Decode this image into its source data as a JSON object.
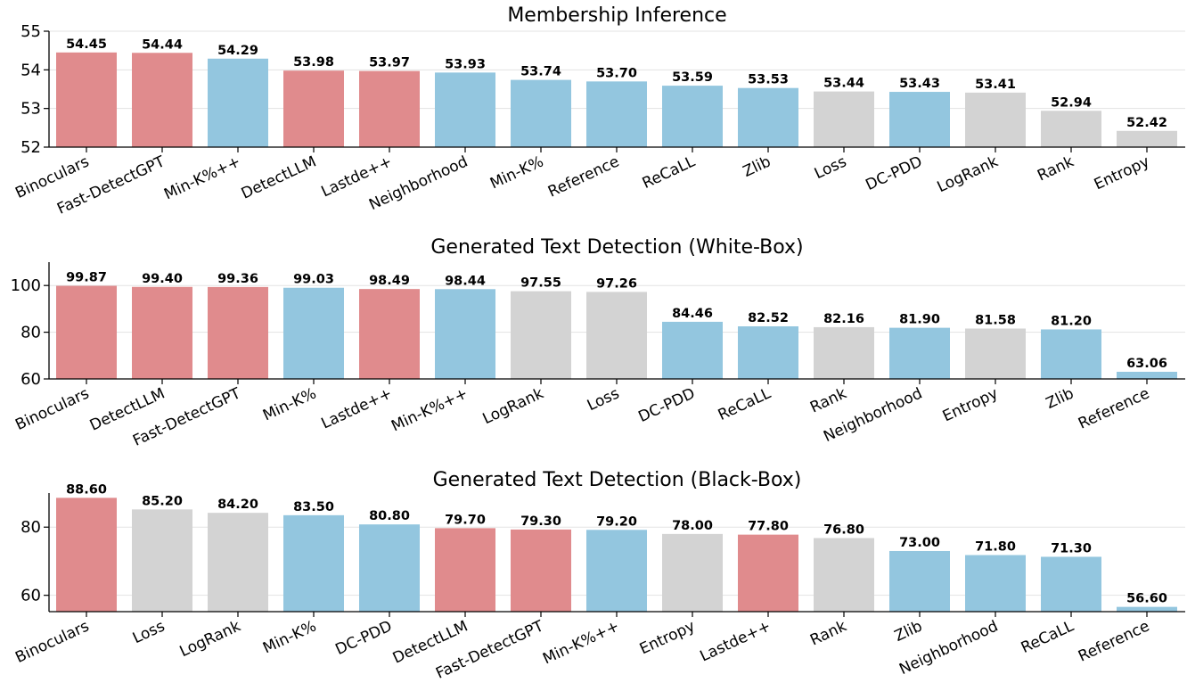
{
  "colors": {
    "red": "#e08b8d",
    "blue": "#93c6df",
    "gray": "#d3d3d3"
  },
  "chart_data": [
    {
      "type": "bar",
      "title": "Membership Inference",
      "categories": [
        "Binoculars",
        "Fast-DetectGPT",
        "Min-K%++",
        "DetectLLM",
        "Lastde++",
        "Neighborhood",
        "Min-K%",
        "Reference",
        "ReCaLL",
        "Zlib",
        "Loss",
        "DC-PDD",
        "LogRank",
        "Rank",
        "Entropy"
      ],
      "values": [
        54.45,
        54.44,
        54.29,
        53.98,
        53.97,
        53.93,
        53.74,
        53.7,
        53.59,
        53.53,
        53.44,
        53.43,
        53.41,
        52.94,
        52.42
      ],
      "value_labels": [
        "54.45",
        "54.44",
        "54.29",
        "53.98",
        "53.97",
        "53.93",
        "53.74",
        "53.70",
        "53.59",
        "53.53",
        "53.44",
        "53.43",
        "53.41",
        "52.94",
        "52.42"
      ],
      "bar_colors": [
        "red",
        "red",
        "blue",
        "red",
        "red",
        "blue",
        "blue",
        "blue",
        "blue",
        "blue",
        "gray",
        "blue",
        "gray",
        "gray",
        "gray"
      ],
      "yticks": [
        52,
        53,
        54,
        55
      ],
      "ylim": [
        52,
        55
      ],
      "grid": true
    },
    {
      "type": "bar",
      "title": "Generated Text Detection (White-Box)",
      "categories": [
        "Binoculars",
        "DetectLLM",
        "Fast-DetectGPT",
        "Min-K%",
        "Lastde++",
        "Min-K%++",
        "LogRank",
        "Loss",
        "DC-PDD",
        "ReCaLL",
        "Rank",
        "Neighborhood",
        "Entropy",
        "Zlib",
        "Reference"
      ],
      "values": [
        99.87,
        99.4,
        99.36,
        99.03,
        98.49,
        98.44,
        97.55,
        97.26,
        84.46,
        82.52,
        82.16,
        81.9,
        81.58,
        81.2,
        63.06
      ],
      "value_labels": [
        "99.87",
        "99.40",
        "99.36",
        "99.03",
        "98.49",
        "98.44",
        "97.55",
        "97.26",
        "84.46",
        "82.52",
        "82.16",
        "81.90",
        "81.58",
        "81.20",
        "63.06"
      ],
      "bar_colors": [
        "red",
        "red",
        "red",
        "blue",
        "red",
        "blue",
        "gray",
        "gray",
        "blue",
        "blue",
        "gray",
        "blue",
        "gray",
        "blue",
        "blue"
      ],
      "yticks": [
        60,
        80,
        100
      ],
      "ylim": [
        60,
        110
      ],
      "grid": true
    },
    {
      "type": "bar",
      "title": "Generated Text Detection (Black-Box)",
      "categories": [
        "Binoculars",
        "Loss",
        "LogRank",
        "Min-K%",
        "DC-PDD",
        "DetectLLM",
        "Fast-DetectGPT",
        "Min-K%++",
        "Entropy",
        "Lastde++",
        "Rank",
        "Zlib",
        "Neighborhood",
        "ReCaLL",
        "Reference"
      ],
      "values": [
        88.6,
        85.2,
        84.2,
        83.5,
        80.8,
        79.7,
        79.3,
        79.2,
        78.0,
        77.8,
        76.8,
        73.0,
        71.8,
        71.3,
        56.6
      ],
      "value_labels": [
        "88.60",
        "85.20",
        "84.20",
        "83.50",
        "80.80",
        "79.70",
        "79.30",
        "79.20",
        "78.00",
        "77.80",
        "76.80",
        "73.00",
        "71.80",
        "71.30",
        "56.60"
      ],
      "bar_colors": [
        "red",
        "gray",
        "gray",
        "blue",
        "blue",
        "red",
        "red",
        "blue",
        "gray",
        "red",
        "gray",
        "blue",
        "blue",
        "blue",
        "blue"
      ],
      "yticks": [
        60,
        80
      ],
      "ylim": [
        55.2,
        90
      ],
      "grid": true
    }
  ]
}
